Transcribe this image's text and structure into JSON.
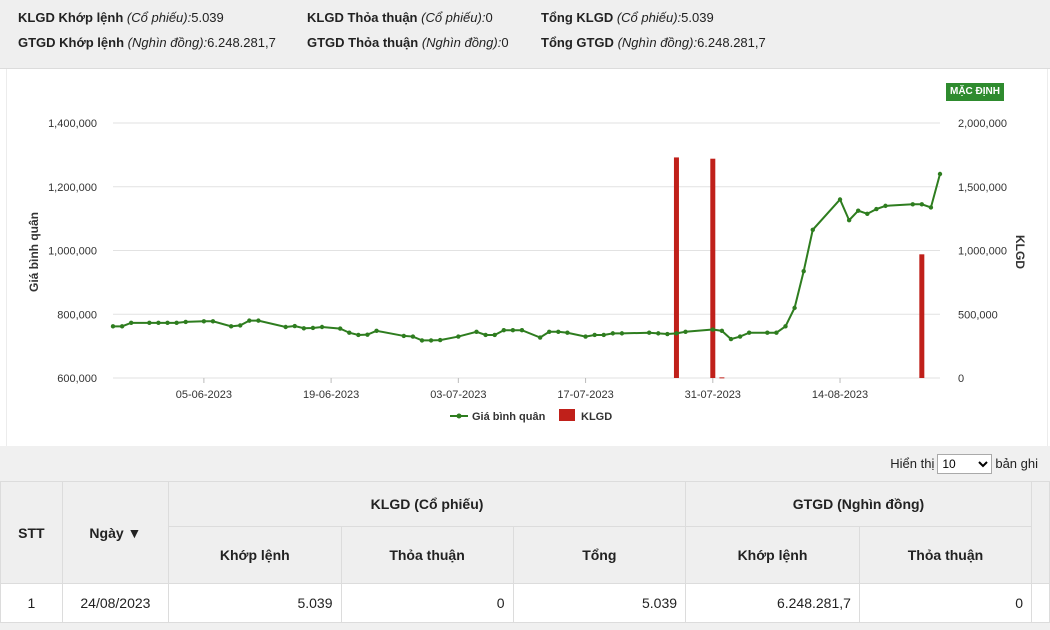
{
  "summary": {
    "row1": [
      {
        "label": "KLGD Khớp lệnh",
        "unit": "(Cổ phiếu):",
        "value": "5.039"
      },
      {
        "label": "KLGD Thỏa thuận",
        "unit": "(Cổ phiếu):",
        "value": "0"
      },
      {
        "label": "Tổng KLGD",
        "unit": "(Cổ phiếu):",
        "value": "5.039"
      }
    ],
    "row2": [
      {
        "label": "GTGD Khớp lệnh",
        "unit": "(Nghìn đồng):",
        "value": "6.248.281,7"
      },
      {
        "label": "GTGD Thỏa thuận",
        "unit": "(Nghìn đồng):",
        "value": "0"
      },
      {
        "label": "Tổng GTGD",
        "unit": "(Nghìn đồng):",
        "value": "6.248.281,7"
      }
    ]
  },
  "chart": {
    "default_button": "MẶC ĐỊNH",
    "legend_avg": "Giá bình quân",
    "legend_vol": "KLGD",
    "colors": {
      "line": "#2e7d1f",
      "bar": "#c0201a",
      "grid": "#e2e2e2"
    }
  },
  "chart_data": {
    "type": "line",
    "ylabel": "Giá bình quân",
    "y2label": "KLGD",
    "ylim": [
      600000,
      1400000
    ],
    "y2lim": [
      0,
      2000000
    ],
    "yticks": [
      "600,000",
      "800,000",
      "1,000,000",
      "1,200,000",
      "1,400,000"
    ],
    "y2ticks": [
      "0",
      "500,000",
      "1,000,000",
      "1,500,000",
      "2,000,000"
    ],
    "xticks": [
      "05-06-2023",
      "19-06-2023",
      "03-07-2023",
      "17-07-2023",
      "31-07-2023",
      "14-08-2023"
    ],
    "x": [
      "2023-05-26",
      "2023-05-27",
      "2023-05-28",
      "2023-05-30",
      "2023-05-31",
      "2023-06-01",
      "2023-06-02",
      "2023-06-03",
      "2023-06-05",
      "2023-06-06",
      "2023-06-08",
      "2023-06-09",
      "2023-06-10",
      "2023-06-11",
      "2023-06-14",
      "2023-06-15",
      "2023-06-16",
      "2023-06-17",
      "2023-06-18",
      "2023-06-20",
      "2023-06-21",
      "2023-06-22",
      "2023-06-23",
      "2023-06-24",
      "2023-06-27",
      "2023-06-28",
      "2023-06-29",
      "2023-06-30",
      "2023-07-01",
      "2023-07-03",
      "2023-07-05",
      "2023-07-06",
      "2023-07-07",
      "2023-07-08",
      "2023-07-09",
      "2023-07-10",
      "2023-07-12",
      "2023-07-13",
      "2023-07-14",
      "2023-07-15",
      "2023-07-17",
      "2023-07-18",
      "2023-07-19",
      "2023-07-20",
      "2023-07-21",
      "2023-07-24",
      "2023-07-25",
      "2023-07-26",
      "2023-07-27",
      "2023-07-28",
      "2023-07-31",
      "2023-08-01",
      "2023-08-02",
      "2023-08-03",
      "2023-08-04",
      "2023-08-06",
      "2023-08-07",
      "2023-08-08",
      "2023-08-09",
      "2023-08-10",
      "2023-08-11",
      "2023-08-14",
      "2023-08-15",
      "2023-08-16",
      "2023-08-17",
      "2023-08-18",
      "2023-08-19",
      "2023-08-22",
      "2023-08-23",
      "2023-08-24",
      "2023-08-25"
    ],
    "series": [
      {
        "name": "Giá bình quân",
        "values": [
          762000,
          762000,
          773000,
          773000,
          773000,
          773000,
          773000,
          776000,
          778000,
          778000,
          762000,
          765000,
          780000,
          780000,
          760000,
          763000,
          756000,
          757000,
          760000,
          755000,
          742000,
          735000,
          736000,
          748000,
          732000,
          730000,
          718000,
          718000,
          719000,
          730000,
          745000,
          735000,
          735000,
          750000,
          750000,
          750000,
          727000,
          745000,
          745000,
          742000,
          730000,
          735000,
          735000,
          740000,
          740000,
          742000,
          740000,
          738000,
          740000,
          745000,
          752000,
          748000,
          722000,
          730000,
          742000,
          742000,
          742000,
          762000,
          820000,
          935000,
          1065000,
          1160000,
          1095000,
          1125000,
          1115000,
          1130000,
          1140000,
          1145000,
          1145000,
          1135000,
          1240000
        ]
      },
      {
        "name": "KLGD",
        "bars": [
          {
            "x": "2023-07-27",
            "value": 1730000
          },
          {
            "x": "2023-07-31",
            "value": 1720000
          },
          {
            "x": "2023-08-01",
            "value": 5039
          },
          {
            "x": "2023-08-23",
            "value": 970000
          }
        ]
      }
    ]
  },
  "table": {
    "display_label": "Hiển thị",
    "display_value": "10",
    "display_suffix": "bản ghi",
    "headers": {
      "stt": "STT",
      "date": "Ngày ▼",
      "klgd_group": "KLGD (Cổ phiếu)",
      "gtgd_group": "GTGD (Nghìn đồng)",
      "klgd_match": "Khớp lệnh",
      "klgd_deal": "Thỏa thuận",
      "klgd_total": "Tổng",
      "gtgd_match": "Khớp lệnh",
      "gtgd_deal": "Thỏa thuận"
    },
    "rows": [
      {
        "stt": "1",
        "date": "24/08/2023",
        "klgd_match": "5.039",
        "klgd_deal": "0",
        "klgd_total": "5.039",
        "gtgd_match": "6.248.281,7",
        "gtgd_deal": "0"
      }
    ]
  }
}
